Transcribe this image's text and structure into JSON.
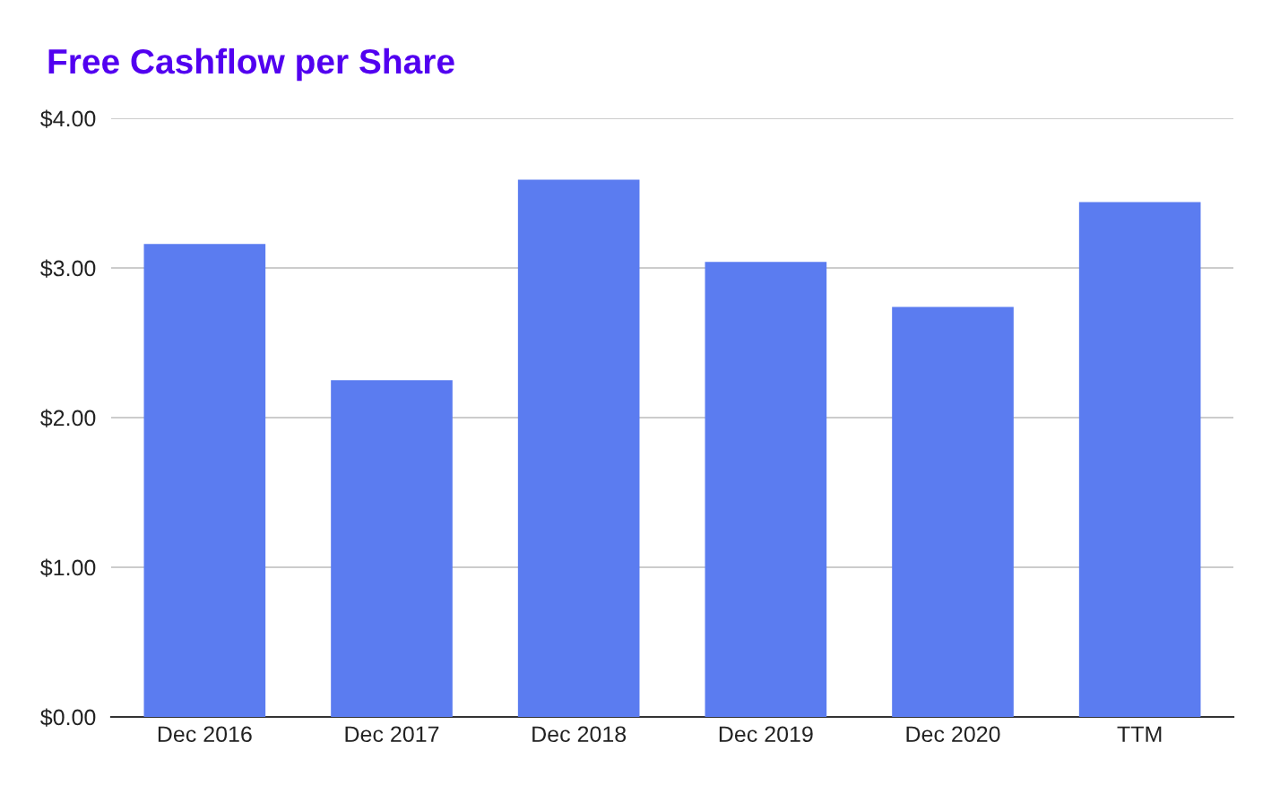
{
  "chart_data": {
    "type": "bar",
    "title": "Free Cashflow per Share",
    "categories": [
      "Dec 2016",
      "Dec 2017",
      "Dec 2018",
      "Dec 2019",
      "Dec 2020",
      "TTM"
    ],
    "values": [
      3.16,
      2.25,
      3.59,
      3.04,
      2.74,
      3.44
    ],
    "color": "#5b7cf0",
    "ylim": [
      0,
      4
    ],
    "yticks": [
      {
        "value": 0,
        "label": "$0.00"
      },
      {
        "value": 1,
        "label": "$1.00"
      },
      {
        "value": 2,
        "label": "$2.00"
      },
      {
        "value": 3,
        "label": "$3.00"
      },
      {
        "value": 4,
        "label": "$4.00"
      }
    ],
    "grid": "y",
    "legend": false
  }
}
